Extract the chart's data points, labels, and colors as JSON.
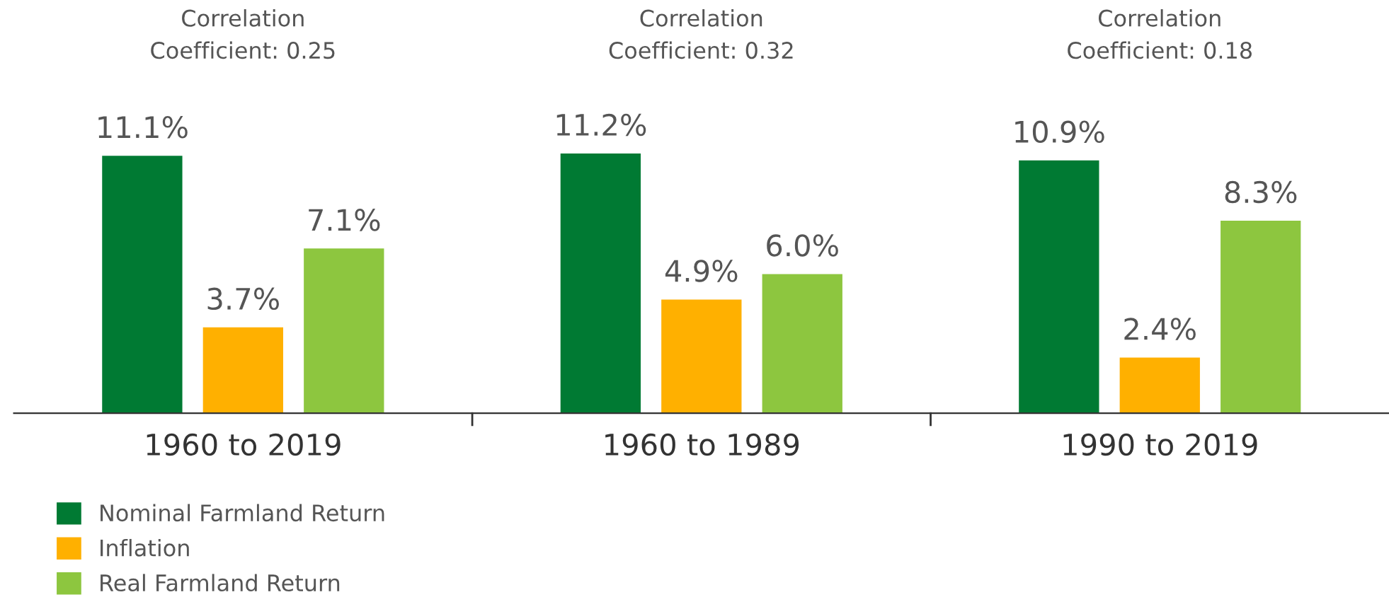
{
  "chart_data": {
    "type": "bar",
    "categories": [
      "1960 to 2019",
      "1960 to 1989",
      "1990 to 2019"
    ],
    "series": [
      {
        "name": "Nominal Farmland Return",
        "color": "#007a33",
        "values": [
          11.1,
          11.2,
          10.9
        ],
        "value_labels": [
          "11.1%",
          "11.2%",
          "10.9%"
        ]
      },
      {
        "name": "Inflation",
        "color": "#ffb000",
        "values": [
          3.7,
          4.9,
          2.4
        ],
        "value_labels": [
          "3.7%",
          "4.9%",
          "2.4%"
        ]
      },
      {
        "name": "Real Farmland Return",
        "color": "#8dc63f",
        "values": [
          7.1,
          6.0,
          8.3
        ],
        "value_labels": [
          "7.1%",
          "6.0%",
          "8.3%"
        ]
      }
    ],
    "annotations": [
      "Correlation\nCoefficient: 0.25",
      "Correlation\nCoefficient: 0.32",
      "Correlation\nCoefficient: 0.18"
    ],
    "legend": "bottom left",
    "grid": false
  }
}
